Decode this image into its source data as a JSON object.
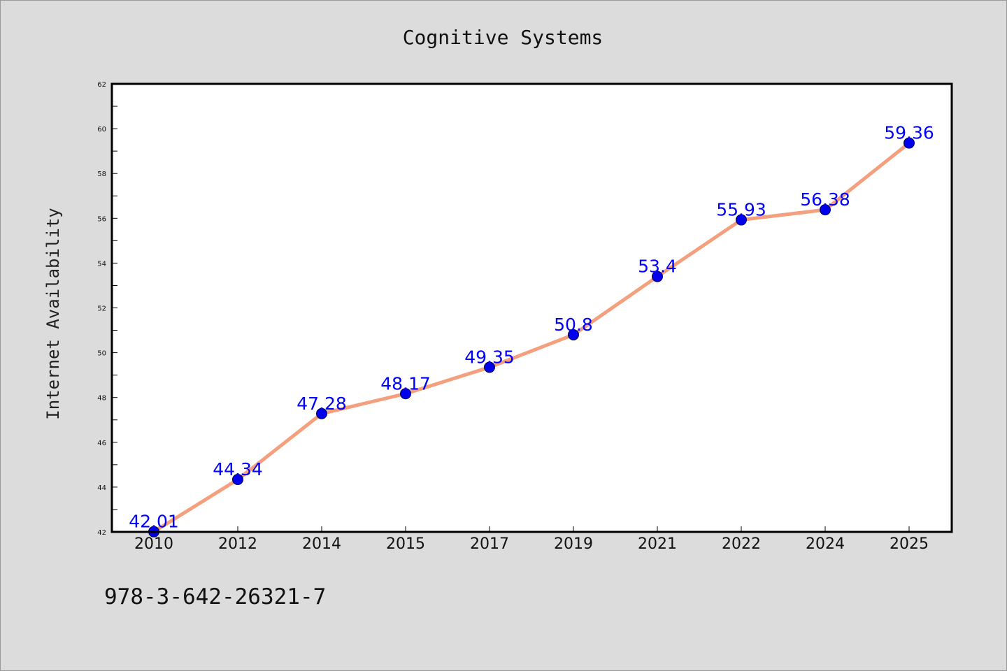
{
  "chart_data": {
    "type": "line",
    "title": "Cognitive Systems",
    "xlabel": "",
    "ylabel": "Internet Availability",
    "categories": [
      "2010",
      "2012",
      "2014",
      "2015",
      "2017",
      "2019",
      "2021",
      "2022",
      "2024",
      "2025"
    ],
    "series": [
      {
        "values": [
          42.01,
          44.34,
          47.28,
          48.17,
          49.35,
          50.8,
          53.4,
          55.93,
          56.38,
          59.36
        ],
        "data_labels": [
          "42.01",
          "44.34",
          "47.28",
          "48.17",
          "49.35",
          "50.8",
          "53.4",
          "55.93",
          "56.38",
          "59.36"
        ]
      }
    ],
    "ylim": [
      42,
      62
    ],
    "yticks": [
      "42",
      "44",
      "46",
      "48",
      "50",
      "52",
      "54",
      "56",
      "58",
      "60",
      "62"
    ],
    "grid": false,
    "legend": "none",
    "colors": {
      "line": "#f4a07e",
      "marker": "#0000ee",
      "data_label": "#0000ff",
      "plot_background": "#ffffff",
      "figure_background": "#dcdcdc"
    }
  },
  "footer": {
    "isbn": "978-3-642-26321-7"
  }
}
